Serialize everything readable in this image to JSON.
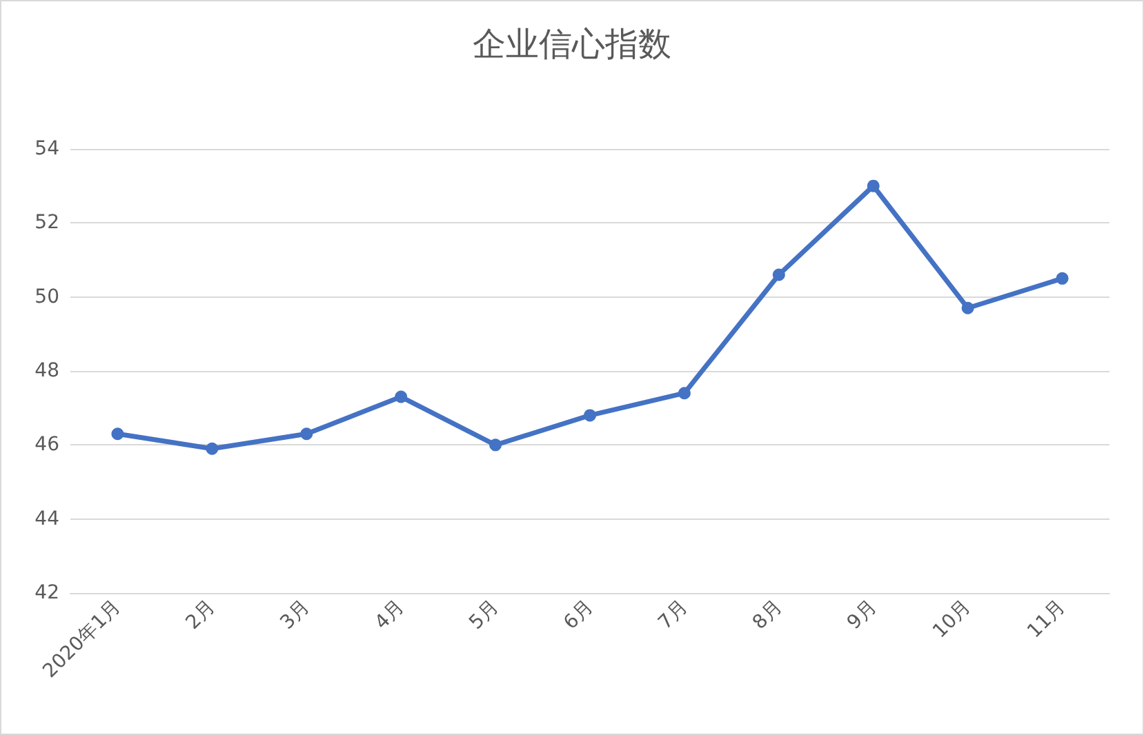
{
  "chart_data": {
    "type": "line",
    "title": "企业信心指数",
    "categories": [
      "2020年1月",
      "2月",
      "3月",
      "4月",
      "5月",
      "6月",
      "7月",
      "8月",
      "9月",
      "10月",
      "11月"
    ],
    "series": [
      {
        "color": "#4472c4",
        "values": [
          46.3,
          45.9,
          46.3,
          47.3,
          46.0,
          46.8,
          47.4,
          50.6,
          53.0,
          49.7,
          50.5
        ]
      }
    ],
    "ylim": [
      42,
      54
    ],
    "yticks": [
      42,
      44,
      46,
      48,
      50,
      52,
      54
    ],
    "grid": "y",
    "marker": "circle",
    "line_style": "solid"
  }
}
